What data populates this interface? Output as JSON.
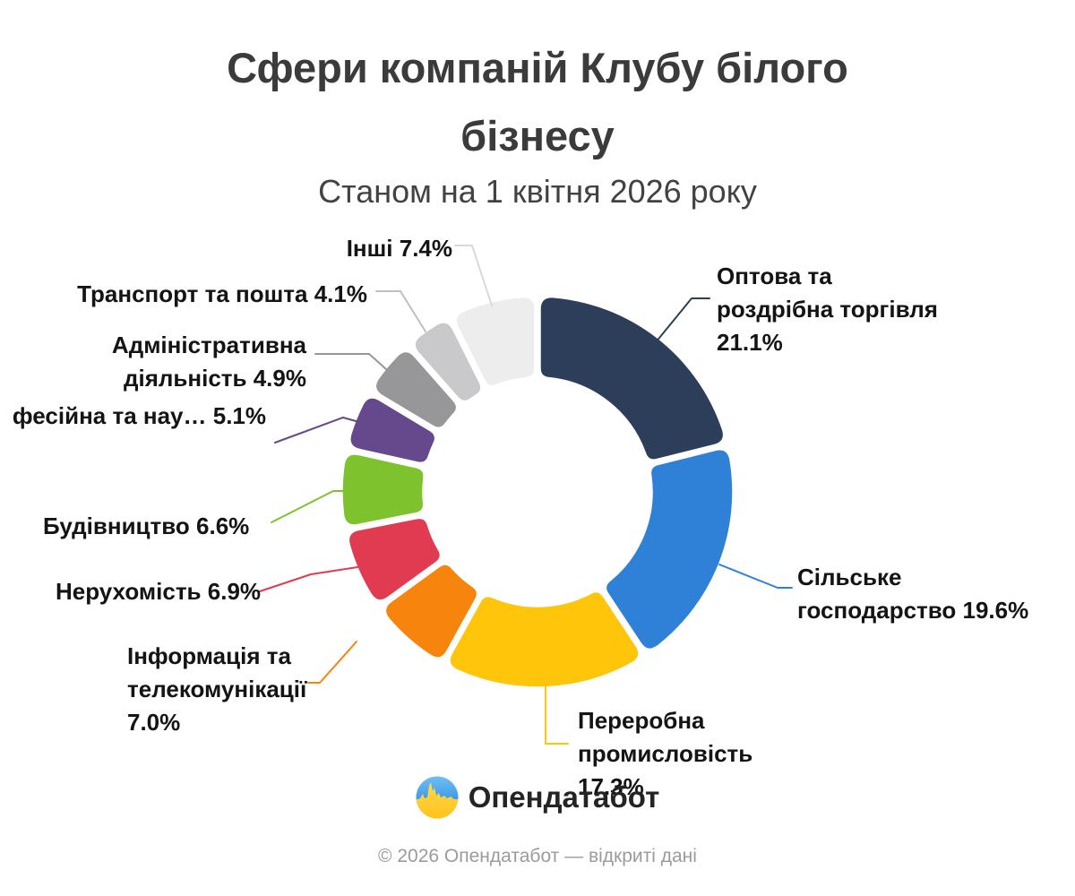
{
  "header": {
    "title_lines": [
      "Сфери компаній Клубу білого",
      "бізнесу"
    ],
    "subtitle": "Станом на 1 квітня 2026 року"
  },
  "chart_data": {
    "type": "pie",
    "variant": "donut",
    "title": "Сфери компаній Клубу білого бізнесу",
    "subtitle": "Станом на 1 квітня 2026 року",
    "unit": "%",
    "start_angle_deg": 0,
    "direction": "clockwise",
    "segments": [
      {
        "id": "optova",
        "name": "Оптова та роздрібна торгівля",
        "value": 21.1,
        "color": "#2d3e5a",
        "label_lines": [
          "Оптова та",
          "роздрібна торгівля",
          "21.1%"
        ]
      },
      {
        "id": "silske",
        "name": "Сільське господарство",
        "value": 19.6,
        "color": "#2f80d7",
        "label_lines": [
          "Сільське",
          "господарство 19.6%"
        ]
      },
      {
        "id": "pererobna",
        "name": "Переробна промисловість",
        "value": 17.3,
        "color": "#ffc50a",
        "label_lines": [
          "Переробна",
          "промисловість",
          "17.3%"
        ]
      },
      {
        "id": "informatsiya",
        "name": "Інформація та телекомунікації",
        "value": 7.0,
        "color": "#f7840d",
        "label_lines": [
          "Інформація та",
          "телекомунікації",
          "7.0%"
        ]
      },
      {
        "id": "nerukhomist",
        "name": "Нерухомість",
        "value": 6.9,
        "color": "#e03b50",
        "label_lines": [
          "Нерухомість 6.9%"
        ]
      },
      {
        "id": "budivnytstvo",
        "name": "Будівництво",
        "value": 6.6,
        "color": "#7ec32d",
        "label_lines": [
          "Будівництво 6.6%"
        ]
      },
      {
        "id": "profesiyna",
        "name": "фесійна та нау…",
        "value": 5.1,
        "color": "#65498c",
        "label_lines": [
          "фесійна та нау… 5.1%"
        ]
      },
      {
        "id": "administratyvna",
        "name": "Адміністративна діяльність",
        "value": 4.9,
        "color": "#97979a",
        "label_lines": [
          "Адміністративна",
          "діяльність 4.9%"
        ]
      },
      {
        "id": "transport",
        "name": "Транспорт та пошта",
        "value": 4.1,
        "color": "#c9c9cc",
        "label_lines": [
          "Транспорт та пошта 4.1%"
        ]
      },
      {
        "id": "inshi",
        "name": "Інші",
        "value": 7.4,
        "color": "#ededee",
        "label_lines": [
          "Інші 7.4%"
        ]
      }
    ]
  },
  "branding": {
    "logo_text": "Опендатабот",
    "logo_icon": "opendatabot-icon",
    "logo_blue_top": "#6fc0f4",
    "logo_blue_bottom": "#3f9ae6",
    "logo_yellow_top": "#ffd94f",
    "logo_yellow_bottom": "#ffc21a"
  },
  "footer": {
    "text": "© 2026 Опендатабот — відкриті дані"
  }
}
